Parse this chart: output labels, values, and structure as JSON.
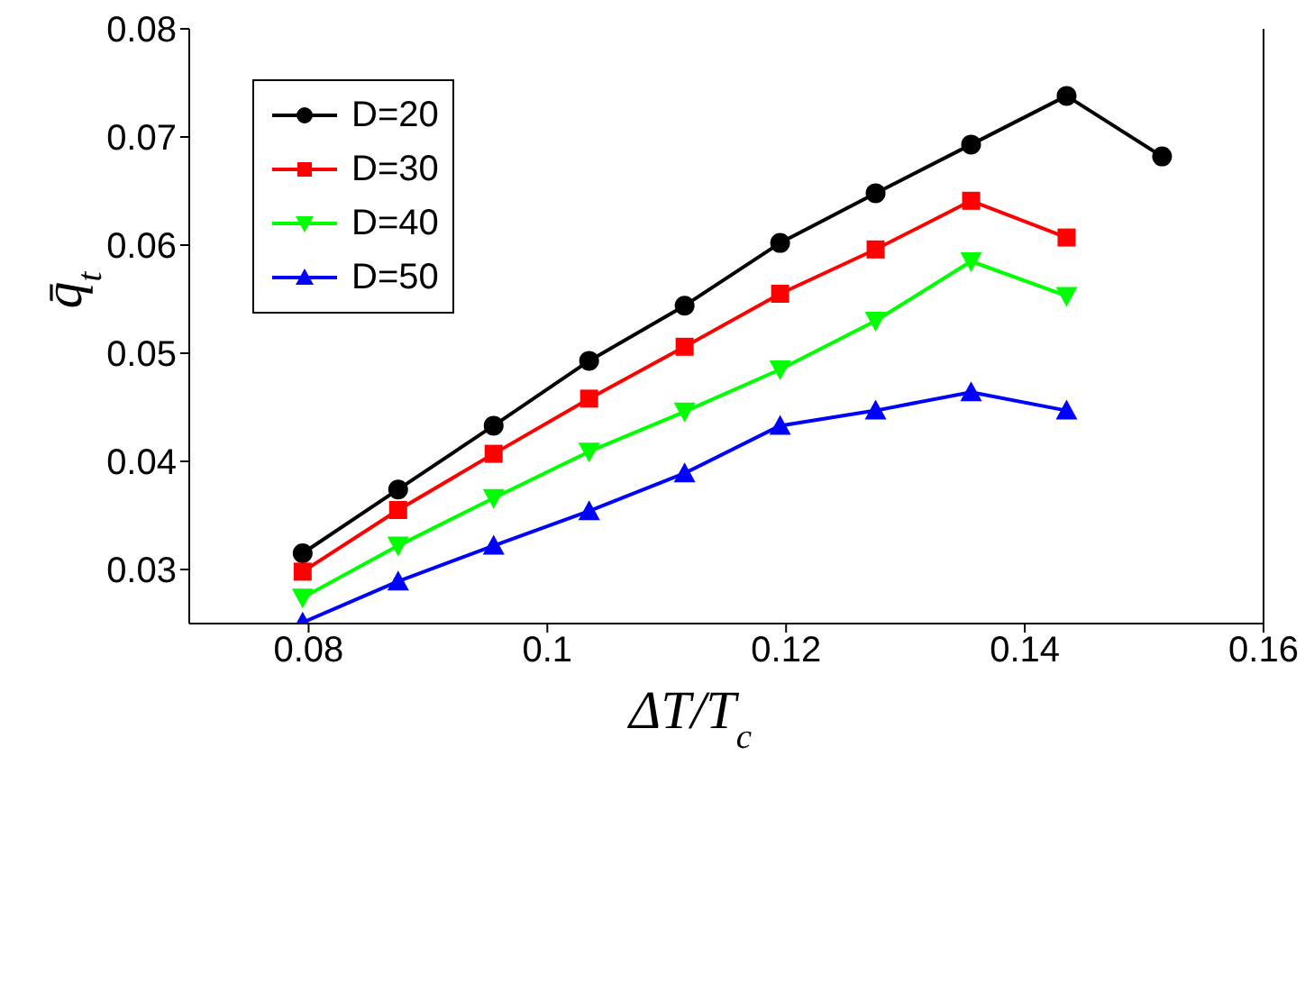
{
  "chart_data": {
    "type": "line",
    "xlabel": "ΔT/T$_{c}$",
    "ylabel": "q̄$_{t}$",
    "x": [
      0.0795,
      0.0875,
      0.0955,
      0.1035,
      0.1115,
      0.1195,
      0.1275,
      0.1355,
      0.1435,
      0.1515
    ],
    "series": [
      {
        "name": "D=20",
        "color": "#000000",
        "marker": "circle",
        "values": [
          0.0315,
          0.0374,
          0.0433,
          0.0493,
          0.0544,
          0.0602,
          0.0648,
          0.0693,
          0.0738,
          0.0682
        ]
      },
      {
        "name": "D=30",
        "color": "#ff0000",
        "marker": "square",
        "values": [
          0.0298,
          0.0355,
          0.0407,
          0.0458,
          0.0506,
          0.0555,
          0.0596,
          0.0641,
          0.0607,
          null
        ]
      },
      {
        "name": "D=40",
        "color": "#00ff00",
        "marker": "triangle-down",
        "values": [
          0.0274,
          0.0322,
          0.0366,
          0.0409,
          0.0446,
          0.0485,
          0.053,
          0.0585,
          0.0553,
          null
        ]
      },
      {
        "name": "D=50",
        "color": "#0000ff",
        "marker": "triangle",
        "values": [
          0.0251,
          0.0289,
          0.0322,
          0.0354,
          0.0389,
          0.0433,
          0.0447,
          0.0464,
          0.0447,
          null
        ]
      }
    ],
    "xlim": [
      0.07,
      0.16
    ],
    "xticks": [
      0.08,
      0.1,
      0.12,
      0.14,
      0.16
    ],
    "ylim": [
      0.025,
      0.08
    ],
    "yticks": [
      0.03,
      0.04,
      0.05,
      0.06,
      0.07,
      0.08
    ],
    "grid": false,
    "legend": "top left",
    "line_style": "solid"
  }
}
